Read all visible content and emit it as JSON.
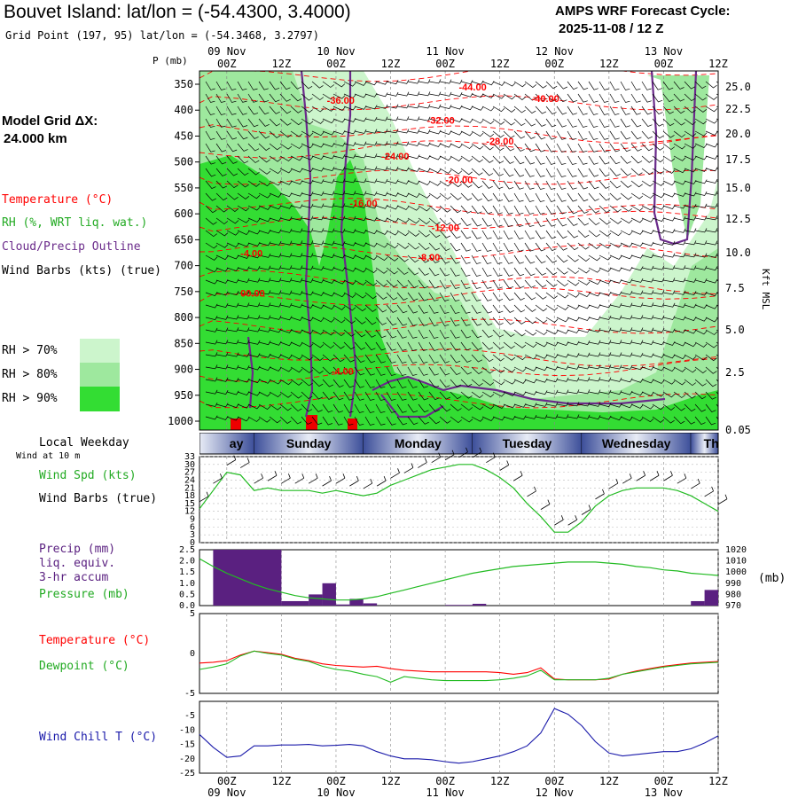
{
  "header": {
    "title": "Bouvet Island:  lat/lon = (-54.4300, 3.4000)",
    "grid_point": "Grid Point (197, 95) lat/lon = (-54.3468, 3.2797)",
    "cycle_label": "AMPS WRF Forecast Cycle:",
    "cycle_value": "2025-11-08 / 12  Z"
  },
  "model_grid": {
    "label": "Model Grid ΔX:",
    "value": " 24.000 km"
  },
  "legend": {
    "temperature": "Temperature (°C)",
    "rh": "RH (%, WRT liq. wat.)",
    "cloud": "Cloud/Precip Outline",
    "wind_barbs": "Wind Barbs (kts) (true)",
    "rh70": "RH > 70%",
    "rh80": "RH > 80%",
    "rh90": "RH > 90%"
  },
  "panel_labels": {
    "local_weekday": "Local Weekday",
    "wind_at": "Wind at 10 m",
    "wind_spd": "Wind Spd (kts)",
    "wind_barbs": "Wind Barbs (true)",
    "precip1": "Precip (mm)",
    "precip2": "liq. equiv.",
    "precip3": "3-hr accum",
    "pressure": "Pressure (mb)",
    "pressure_unit": "(mb)",
    "temperature": "Temperature (°C)",
    "dewpoint": "Dewpoint (°C)",
    "windchill": "Wind Chill T (°C)",
    "p_axis_title": "P (mb)",
    "kft_axis_title": "Kft MSL"
  },
  "colors": {
    "temperature": "#ff0000",
    "rh_label": "#22aa22",
    "cloud": "#6a2a8a",
    "rh70": "#ccf5cc",
    "rh80": "#9ee89e",
    "rh90": "#33dd33",
    "precip": "#5a2080",
    "pressure": "#22bb22",
    "windchill": "#1a1aaa",
    "weekday_bg": "#3d4f9a"
  },
  "time_axis": {
    "top_dates": [
      "09 Nov",
      "10 Nov",
      "11 Nov",
      "12 Nov",
      "13 Nov"
    ],
    "top_ticks": [
      "00Z",
      "12Z",
      "00Z",
      "12Z",
      "00Z",
      "12Z",
      "00Z",
      "12Z",
      "00Z",
      "12Z"
    ],
    "bottom_ticks": [
      "00Z",
      "12Z",
      "00Z",
      "12Z",
      "00Z",
      "12Z",
      "00Z",
      "12Z",
      "00Z",
      "12Z"
    ],
    "bottom_dates": [
      "09 Nov",
      "10 Nov",
      "11 Nov",
      "12 Nov",
      "13 Nov"
    ],
    "weekdays": [
      "ay",
      "Sunday",
      "Monday",
      "Tuesday",
      "Wednesday",
      "Thur"
    ]
  },
  "chart_data": [
    {
      "type": "heatmap",
      "title": "Vertical cross section: temperature, RH, cloud outline, wind barbs",
      "ylabel": "P (mb)",
      "y2label": "Kft MSL",
      "x_range_hours_from_09Nov_00Z": [
        -6,
        108
      ],
      "pressure_ticks": [
        "350",
        "400",
        "450",
        "500",
        "550",
        "600",
        "650",
        "700",
        "750",
        "800",
        "850",
        "900",
        "950",
        "1000"
      ],
      "height_ticks": [
        "25.0",
        "22.5",
        "20.0",
        "17.5",
        "15.0",
        "12.5",
        "10.0",
        "7.5",
        "5.0",
        "2.5",
        "0.05"
      ],
      "temperature_contour_labels": [
        {
          "text": "-44.00",
          "t": 51,
          "p": 362
        },
        {
          "text": "-40.00",
          "t": 67,
          "p": 384
        },
        {
          "text": "-36.00",
          "t": 22,
          "p": 388
        },
        {
          "text": "-32.00",
          "t": 44,
          "p": 426
        },
        {
          "text": "-28.00",
          "t": 57,
          "p": 466
        },
        {
          "text": "-24.00",
          "t": 34,
          "p": 495
        },
        {
          "text": "-20.00",
          "t": 48,
          "p": 541
        },
        {
          "text": "-16.00",
          "t": 27,
          "p": 586
        },
        {
          "text": "-12.00",
          "t": 45,
          "p": 633
        },
        {
          "text": "-8.00",
          "t": 42,
          "p": 690
        },
        {
          "text": "-4.00",
          "t": 3,
          "p": 683
        },
        {
          "text": "00.00",
          "t": 3,
          "p": 760
        },
        {
          "text": "-4.00",
          "t": 23,
          "p": 910
        }
      ]
    },
    {
      "type": "line",
      "title": "Wind Spd (kts)",
      "ylim": [
        0,
        33
      ],
      "yticks": [
        "33",
        "30",
        "27",
        "24",
        "21",
        "18",
        "15",
        "12",
        "9",
        "6",
        "3",
        "0"
      ],
      "x_hours": [
        -6,
        -3,
        0,
        3,
        6,
        9,
        12,
        15,
        18,
        21,
        24,
        27,
        30,
        33,
        36,
        39,
        42,
        45,
        48,
        51,
        54,
        57,
        60,
        63,
        66,
        69,
        72,
        75,
        78,
        81,
        84,
        87,
        90,
        93,
        96,
        99,
        102,
        105,
        108
      ],
      "values": [
        13,
        20,
        27,
        26,
        20,
        21,
        20,
        20,
        20,
        19,
        20,
        19,
        18,
        19,
        22,
        24,
        26,
        28,
        29,
        30,
        30,
        28,
        25,
        21,
        15,
        10,
        4,
        4,
        8,
        14,
        18,
        20,
        21,
        21,
        21,
        20,
        18,
        15,
        12
      ]
    },
    {
      "type": "bar",
      "title": "Precip (mm) liq. equiv. 3-hr accum",
      "ylim": [
        0,
        2.5
      ],
      "yticks": [
        "2.5",
        "2.0",
        "1.5",
        "1.0",
        "0.5",
        "0.0"
      ],
      "bars": [
        {
          "t_start": -3,
          "t_end": 12,
          "value": 2.5
        },
        {
          "t_start": 12,
          "t_end": 18,
          "value": 0.2
        },
        {
          "t_start": 18,
          "t_end": 21,
          "value": 0.5
        },
        {
          "t_start": 21,
          "t_end": 24,
          "value": 1.0
        },
        {
          "t_start": 24,
          "t_end": 27,
          "value": 0.05
        },
        {
          "t_start": 27,
          "t_end": 30,
          "value": 0.3
        },
        {
          "t_start": 30,
          "t_end": 33,
          "value": 0.1
        },
        {
          "t_start": 48,
          "t_end": 54,
          "value": 0.03
        },
        {
          "t_start": 54,
          "t_end": 57,
          "value": 0.08
        },
        {
          "t_start": 102,
          "t_end": 105,
          "value": 0.2
        },
        {
          "t_start": 105,
          "t_end": 108,
          "value": 0.7
        }
      ],
      "pressure_axis": {
        "ylim": [
          970,
          1020
        ],
        "yticks": [
          "1020",
          "1010",
          "1000",
          "990",
          "980",
          "970"
        ]
      },
      "pressure_series": {
        "x_hours": [
          -6,
          -3,
          0,
          3,
          6,
          9,
          12,
          15,
          18,
          21,
          24,
          27,
          30,
          33,
          36,
          39,
          42,
          45,
          48,
          51,
          54,
          57,
          60,
          63,
          66,
          69,
          72,
          75,
          78,
          81,
          84,
          87,
          90,
          93,
          96,
          99,
          102,
          105,
          108
        ],
        "values": [
          1012,
          1005,
          999,
          994,
          989,
          985,
          982,
          979,
          977,
          976,
          975,
          975,
          976,
          978,
          981,
          984,
          987,
          990,
          993,
          996,
          999,
          1001,
          1003,
          1005,
          1006,
          1007,
          1008,
          1009,
          1009,
          1009,
          1008,
          1007,
          1005,
          1004,
          1002,
          1001,
          999,
          998,
          997
        ]
      }
    },
    {
      "type": "line",
      "title": "Temperature / Dewpoint (°C)",
      "ylim": [
        -5,
        5
      ],
      "yticks": [
        "5",
        "0",
        "-5"
      ],
      "x_hours": [
        -6,
        -3,
        0,
        3,
        6,
        9,
        12,
        15,
        18,
        21,
        24,
        27,
        30,
        33,
        36,
        39,
        42,
        45,
        48,
        51,
        54,
        57,
        60,
        63,
        66,
        69,
        72,
        75,
        78,
        81,
        84,
        87,
        90,
        93,
        96,
        99,
        102,
        105,
        108
      ],
      "series": [
        {
          "name": "Temperature",
          "values": [
            -1.2,
            -1.1,
            -0.9,
            -0.2,
            0.3,
            0.1,
            -0.1,
            -0.6,
            -0.9,
            -1.3,
            -1.5,
            -1.6,
            -1.7,
            -1.6,
            -1.9,
            -2.1,
            -2.2,
            -2.3,
            -2.3,
            -2.3,
            -2.3,
            -2.3,
            -2.4,
            -2.6,
            -2.4,
            -1.8,
            -3.2,
            -3.3,
            -3.3,
            -3.3,
            -3.2,
            -2.6,
            -2.2,
            -1.9,
            -1.6,
            -1.4,
            -1.2,
            -1.1,
            -1.0
          ]
        },
        {
          "name": "Dewpoint",
          "values": [
            -2.0,
            -1.7,
            -1.3,
            -0.3,
            0.3,
            0.0,
            -0.2,
            -0.7,
            -1.0,
            -1.6,
            -2.0,
            -2.2,
            -2.6,
            -2.9,
            -3.6,
            -2.9,
            -3.1,
            -3.3,
            -3.4,
            -3.4,
            -3.4,
            -3.4,
            -3.3,
            -3.1,
            -2.8,
            -2.1,
            -3.3,
            -3.3,
            -3.3,
            -3.3,
            -3.1,
            -2.6,
            -2.3,
            -2.0,
            -1.7,
            -1.5,
            -1.3,
            -1.2,
            -1.1
          ]
        }
      ]
    },
    {
      "type": "line",
      "title": "Wind Chill T (°C)",
      "ylim": [
        -25,
        0
      ],
      "yticks": [
        "-5",
        "-10",
        "-15",
        "-20",
        "-25"
      ],
      "x_hours": [
        -6,
        -3,
        0,
        3,
        6,
        9,
        12,
        15,
        18,
        21,
        24,
        27,
        30,
        33,
        36,
        39,
        42,
        45,
        48,
        51,
        54,
        57,
        60,
        63,
        66,
        69,
        72,
        75,
        78,
        81,
        84,
        87,
        90,
        93,
        96,
        99,
        102,
        105,
        108
      ],
      "values": [
        -11.5,
        -16,
        -19.5,
        -19,
        -15.5,
        -15.5,
        -15.2,
        -15.2,
        -15,
        -15.5,
        -15.3,
        -15,
        -15.5,
        -17.5,
        -19,
        -20,
        -20,
        -20.3,
        -21,
        -21.5,
        -21,
        -20,
        -19,
        -17.5,
        -15.5,
        -11,
        -2.5,
        -4.5,
        -8.5,
        -14,
        -18,
        -19,
        -18.5,
        -18,
        -17.5,
        -17.5,
        -16.5,
        -14.5,
        -12
      ]
    }
  ]
}
